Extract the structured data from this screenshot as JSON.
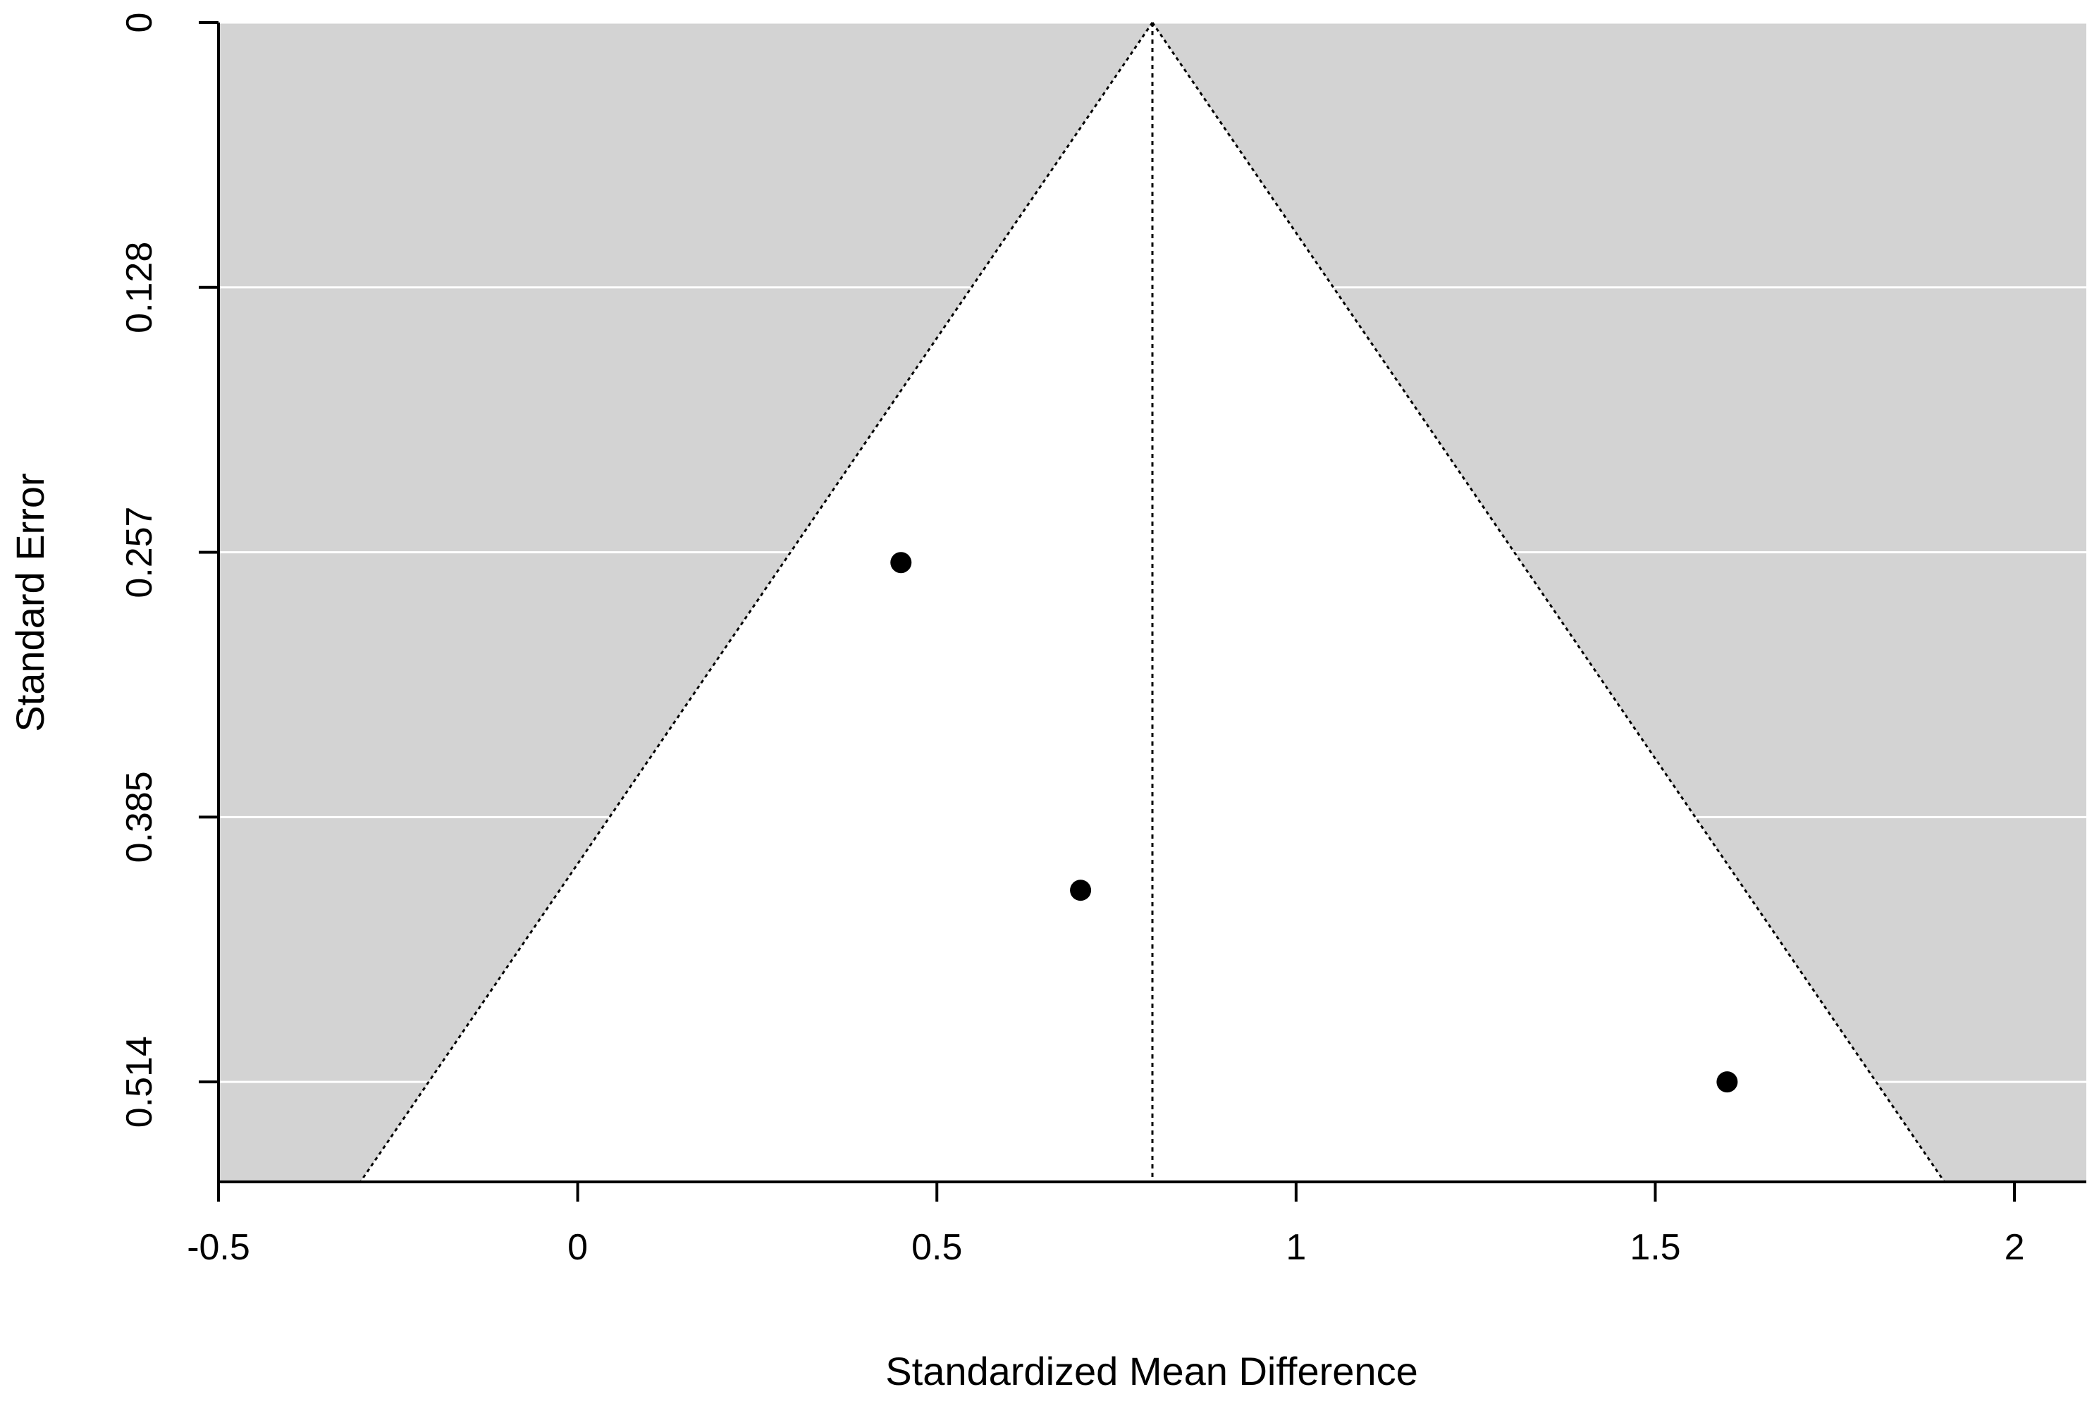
{
  "chart_data": {
    "type": "scatter",
    "subtype": "funnel",
    "xlabel": "Standardized Mean Difference",
    "ylabel": "Standard Error",
    "xlim": [
      -0.5,
      2.1
    ],
    "ylim": [
      0,
      0.5625
    ],
    "y_reversed": true,
    "x_ticks": [
      -0.5,
      0,
      0.5,
      1,
      1.5,
      2
    ],
    "x_tick_labels": [
      "-0.5",
      "0",
      "0.5",
      "1",
      "1.5",
      "2"
    ],
    "y_ticks": [
      0,
      0.1285,
      0.257,
      0.3855,
      0.514
    ],
    "y_tick_labels": [
      "0",
      "0.128",
      "0.257",
      "0.385",
      "0.514"
    ],
    "summary_effect": 0.8,
    "funnel_z": 1.96,
    "points": [
      {
        "x": 0.45,
        "y": 0.262
      },
      {
        "x": 0.7,
        "y": 0.421
      },
      {
        "x": 1.6,
        "y": 0.514
      }
    ],
    "colors": {
      "background": "#d3d3d3",
      "funnel": "#ffffff",
      "gridline": "#ffffff",
      "points": "#000000"
    },
    "grid": true
  }
}
